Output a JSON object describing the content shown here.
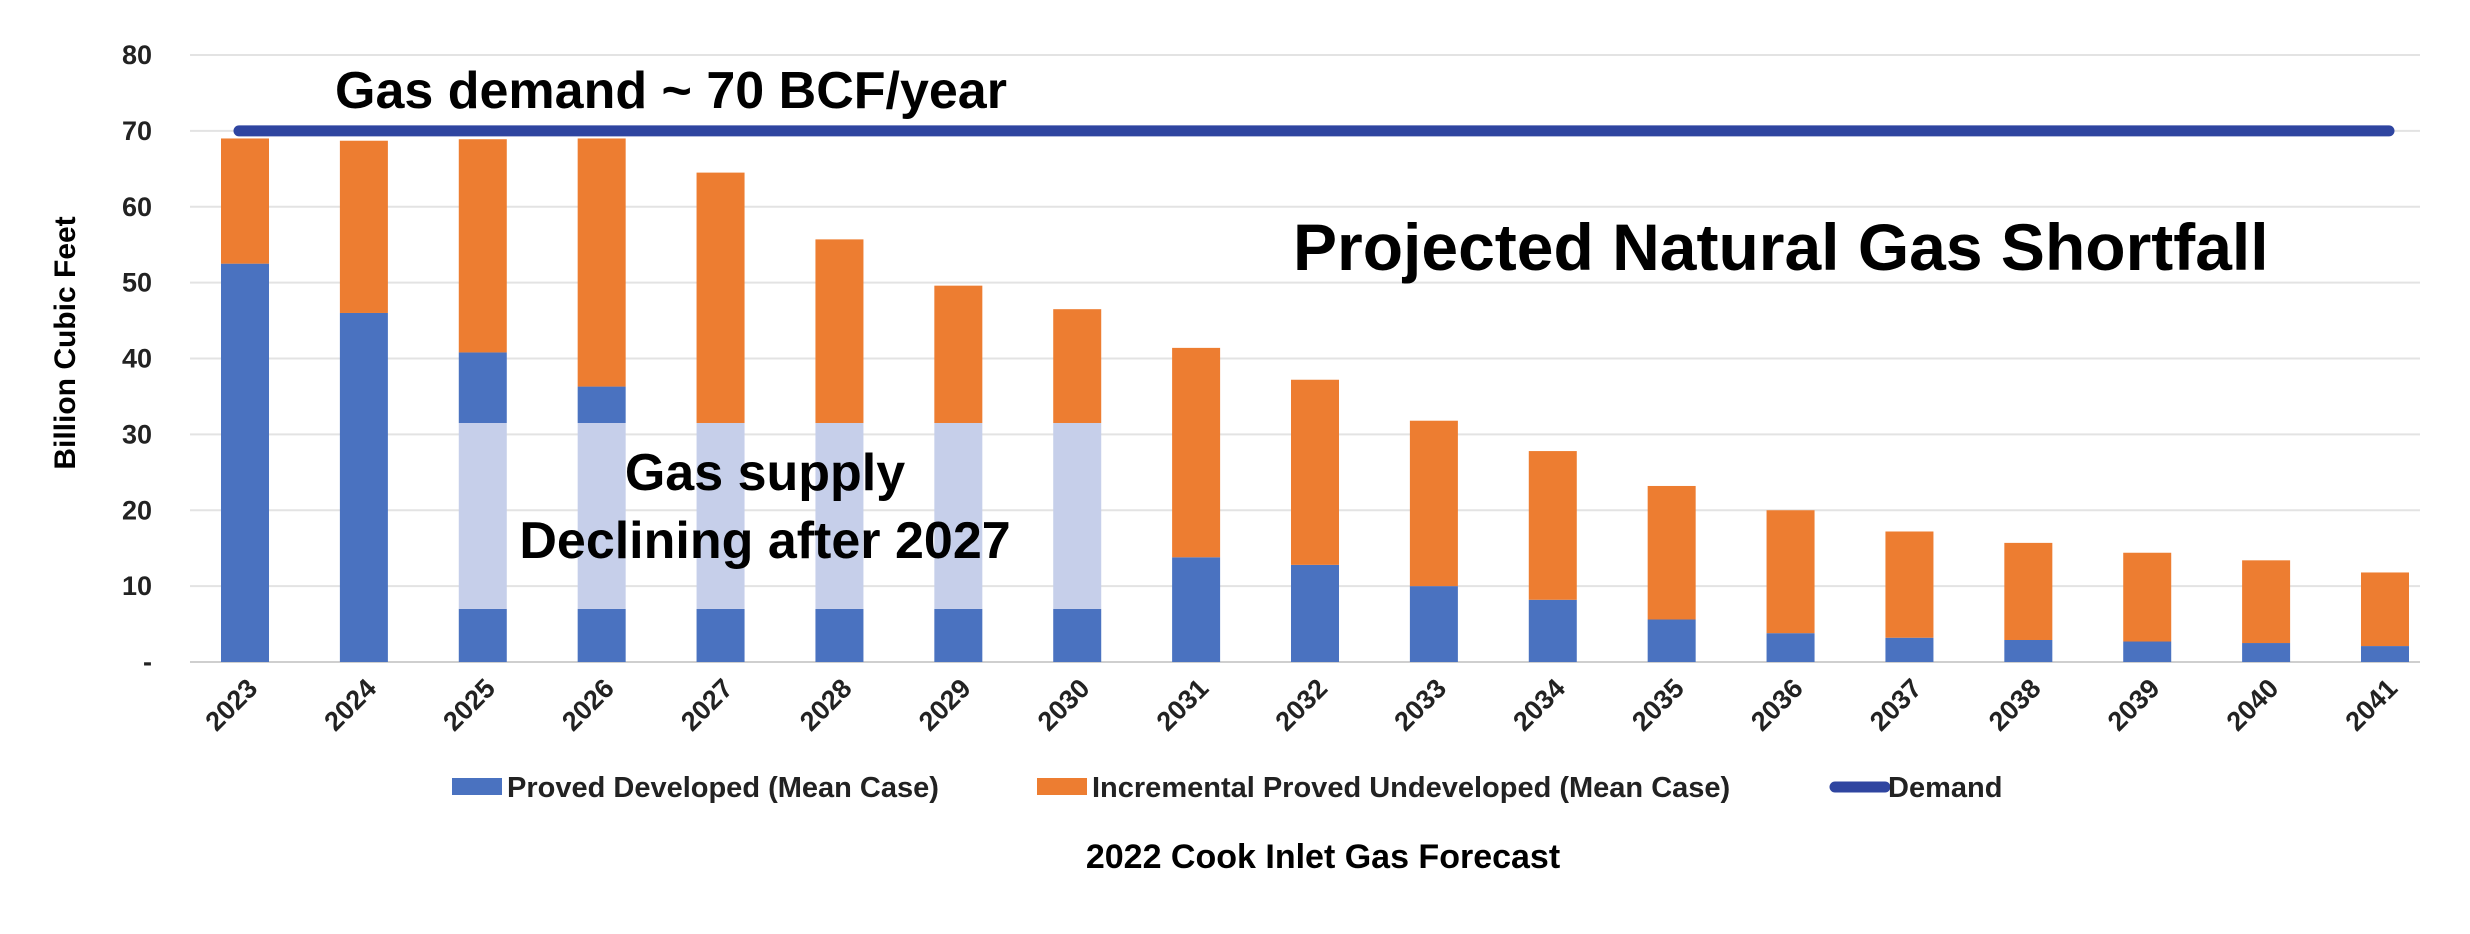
{
  "chart_data": {
    "type": "bar",
    "stacked": true,
    "title": "Projected Natural Gas Shortfall",
    "subtitle": "2022 Cook Inlet Gas Forecast",
    "xlabel": "",
    "ylabel": "Billion Cubic Feet",
    "ylim": [
      0,
      80
    ],
    "yticks": [
      0,
      10,
      20,
      30,
      40,
      50,
      60,
      70,
      80
    ],
    "ytick_labels": [
      "-",
      "10",
      "20",
      "30",
      "40",
      "50",
      "60",
      "70",
      "80"
    ],
    "grid": true,
    "legend_position": "bottom",
    "categories": [
      "2023",
      "2024",
      "2025",
      "2026",
      "2027",
      "2028",
      "2029",
      "2030",
      "2031",
      "2032",
      "2033",
      "2034",
      "2035",
      "2036",
      "2037",
      "2038",
      "2039",
      "2040",
      "2041"
    ],
    "series": [
      {
        "name": "Proved Developed (Mean Case)",
        "color": "#4a72c0",
        "faded_color": "#c6cfea",
        "values": [
          52.5,
          46,
          40.8,
          36.3,
          31.5,
          31.5,
          31.5,
          31.5,
          13.8,
          12.8,
          10,
          8.2,
          5.6,
          3.8,
          3.2,
          2.9,
          2.7,
          2.5,
          2.1
        ]
      },
      {
        "name": "Incremental Proved Undeveloped (Mean Case)",
        "color": "#ed7d31",
        "faded_color": "#fbd9bf",
        "values": [
          16.5,
          22.7,
          28.1,
          32.7,
          33,
          24.2,
          18.1,
          15,
          27.6,
          24.4,
          21.8,
          19.6,
          17.6,
          16.2,
          14,
          12.8,
          11.7,
          10.9,
          9.7
        ]
      }
    ],
    "demand": {
      "name": "Demand",
      "value": 70,
      "color": "#2f45a0"
    },
    "annotations": {
      "demand_label": "Gas demand ~ 70 BCF/year",
      "supply_line1": "Gas supply",
      "supply_line2": "Declining after 2027"
    },
    "highlight": {
      "ymin": 7,
      "ymax": 31.5,
      "categories": [
        "2025",
        "2026",
        "2027",
        "2028",
        "2029",
        "2030"
      ]
    }
  }
}
